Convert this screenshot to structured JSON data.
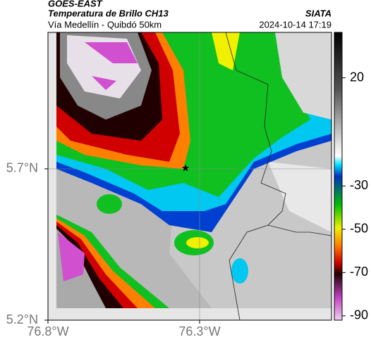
{
  "header": {
    "title": "GOES-EAST",
    "subtitle": "Temperatura de Brillo CH13",
    "location": "Vía Medellín - Quibdó 50km",
    "source": "SIATA",
    "datetime": "2024-10-14 17:19"
  },
  "map": {
    "xlim": [
      -76.8,
      -75.865
    ],
    "ylim": [
      5.2,
      6.151
    ],
    "xticks": [
      {
        "value": -76.8,
        "label": "76.8°W"
      },
      {
        "value": -76.3,
        "label": "76.3°W"
      }
    ],
    "yticks": [
      {
        "value": 5.7,
        "label": "5.7°N"
      },
      {
        "value": 5.2,
        "label": "5.2°N"
      }
    ]
  },
  "colorbar": {
    "lim": [
      -92,
      41
    ],
    "ticks": [
      20,
      -30,
      -50,
      -70,
      -90
    ]
  }
}
